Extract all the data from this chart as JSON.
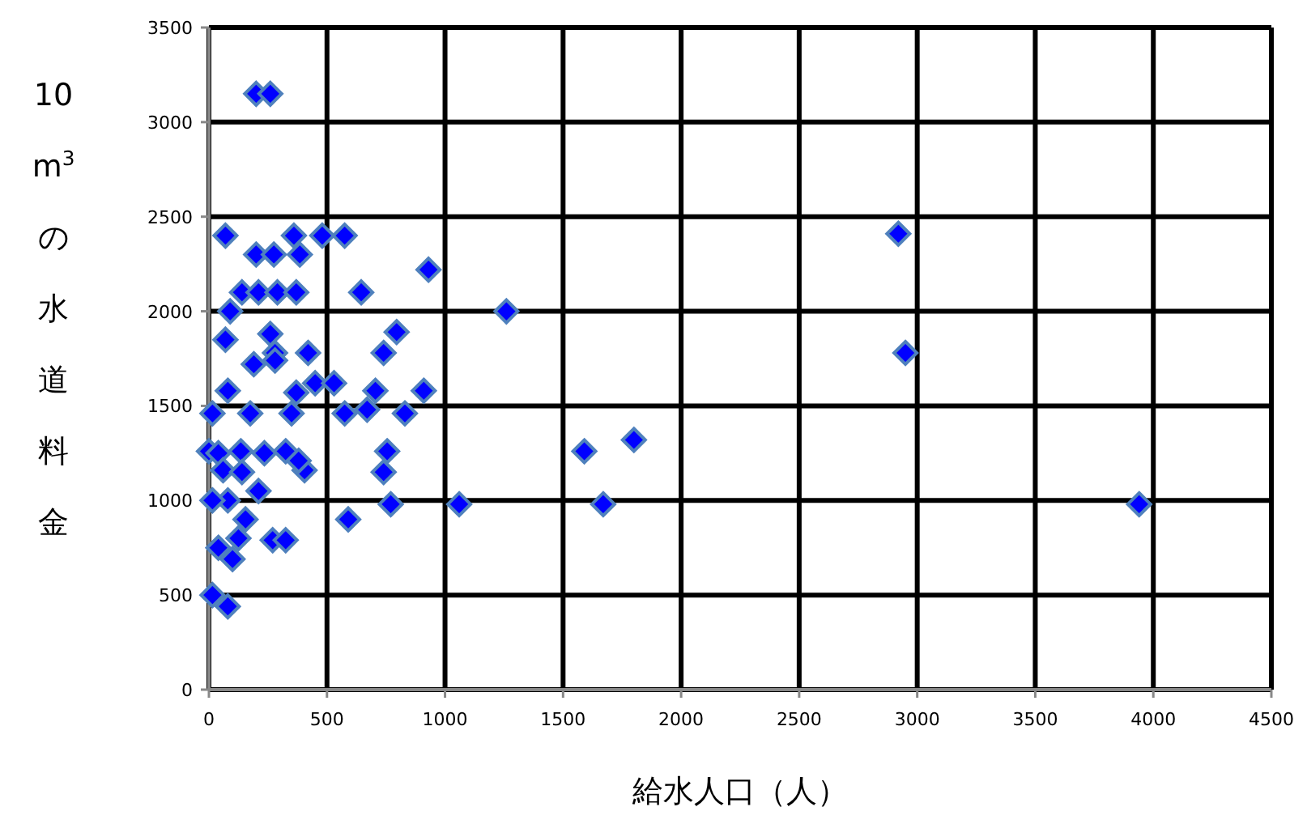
{
  "chart_data": {
    "type": "scatter",
    "xlabel": "給水人口（人）",
    "ylabel": "10m$^{3}$の水道料金",
    "xlim": [
      0,
      4500
    ],
    "ylim": [
      0,
      3500
    ],
    "xticks": [
      0,
      500,
      1000,
      1500,
      2000,
      2500,
      3000,
      3500,
      4000,
      4500
    ],
    "yticks": [
      0,
      500,
      1000,
      1500,
      2000,
      2500,
      3000,
      3500
    ],
    "grid": true,
    "marker": "diamond",
    "series": [
      {
        "color": "#0000ff",
        "x": [
          200,
          260,
          70,
          360,
          480,
          575,
          200,
          275,
          385,
          930,
          2920,
          140,
          210,
          290,
          370,
          645,
          90,
          1260,
          70,
          260,
          795,
          740,
          280,
          420,
          190,
          280,
          80,
          15,
          175,
          350,
          450,
          370,
          530,
          575,
          670,
          705,
          830,
          910,
          0,
          40,
          135,
          235,
          325,
          405,
          380,
          60,
          140,
          755,
          740,
          210,
          80,
          15,
          770,
          1060,
          590,
          155,
          40,
          125,
          270,
          325,
          100,
          15,
          80,
          2950,
          1590,
          1800,
          1670,
          3940
        ],
        "values": [
          3150,
          3150,
          2400,
          2400,
          2400,
          2400,
          2300,
          2300,
          2300,
          2220,
          2410,
          2100,
          2100,
          2100,
          2100,
          2100,
          2000,
          2000,
          1850,
          1880,
          1890,
          1780,
          1780,
          1780,
          1720,
          1740,
          1580,
          1460,
          1460,
          1460,
          1620,
          1570,
          1620,
          1460,
          1480,
          1580,
          1460,
          1580,
          1260,
          1250,
          1260,
          1250,
          1260,
          1160,
          1210,
          1160,
          1150,
          1260,
          1150,
          1050,
          1000,
          1000,
          980,
          980,
          900,
          900,
          750,
          800,
          790,
          790,
          690,
          500,
          440,
          1780,
          1260,
          1320,
          980,
          980
        ]
      }
    ]
  }
}
